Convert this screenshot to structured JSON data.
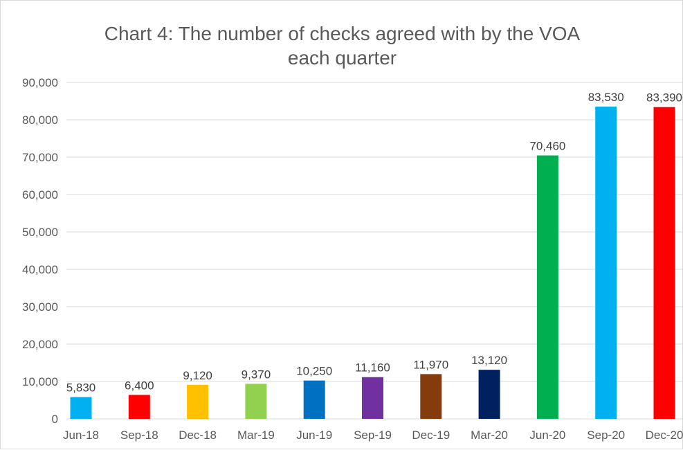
{
  "chart_data": {
    "type": "bar",
    "title_lines": [
      "Chart 4: The number of checks agreed with by the VOA",
      "each quarter"
    ],
    "categories": [
      "Jun-18",
      "Sep-18",
      "Dec-18",
      "Mar-19",
      "Jun-19",
      "Sep-19",
      "Dec-19",
      "Mar-20",
      "Jun-20",
      "Sep-20",
      "Dec-20"
    ],
    "values": [
      5830,
      6400,
      9120,
      9370,
      10250,
      11160,
      11970,
      13120,
      70460,
      83530,
      83390
    ],
    "data_labels": [
      "5,830",
      "6,400",
      "9,120",
      "9,370",
      "10,250",
      "11,160",
      "11,970",
      "13,120",
      "70,460",
      "83,530",
      "83,390"
    ],
    "bar_colors": [
      "#00B0F0",
      "#FF0000",
      "#FFC000",
      "#92D050",
      "#0070C0",
      "#7030A0",
      "#843C0C",
      "#002060",
      "#00B050",
      "#00B0F0",
      "#FF0000"
    ],
    "y_ticks": [
      0,
      10000,
      20000,
      30000,
      40000,
      50000,
      60000,
      70000,
      80000,
      90000
    ],
    "y_tick_labels": [
      "0",
      "10,000",
      "20,000",
      "30,000",
      "40,000",
      "50,000",
      "60,000",
      "70,000",
      "80,000",
      "90,000"
    ],
    "ylim": [
      0,
      90000
    ],
    "grid": true,
    "gridline_color": "#d9d9d9",
    "xlabel": "",
    "ylabel": ""
  }
}
